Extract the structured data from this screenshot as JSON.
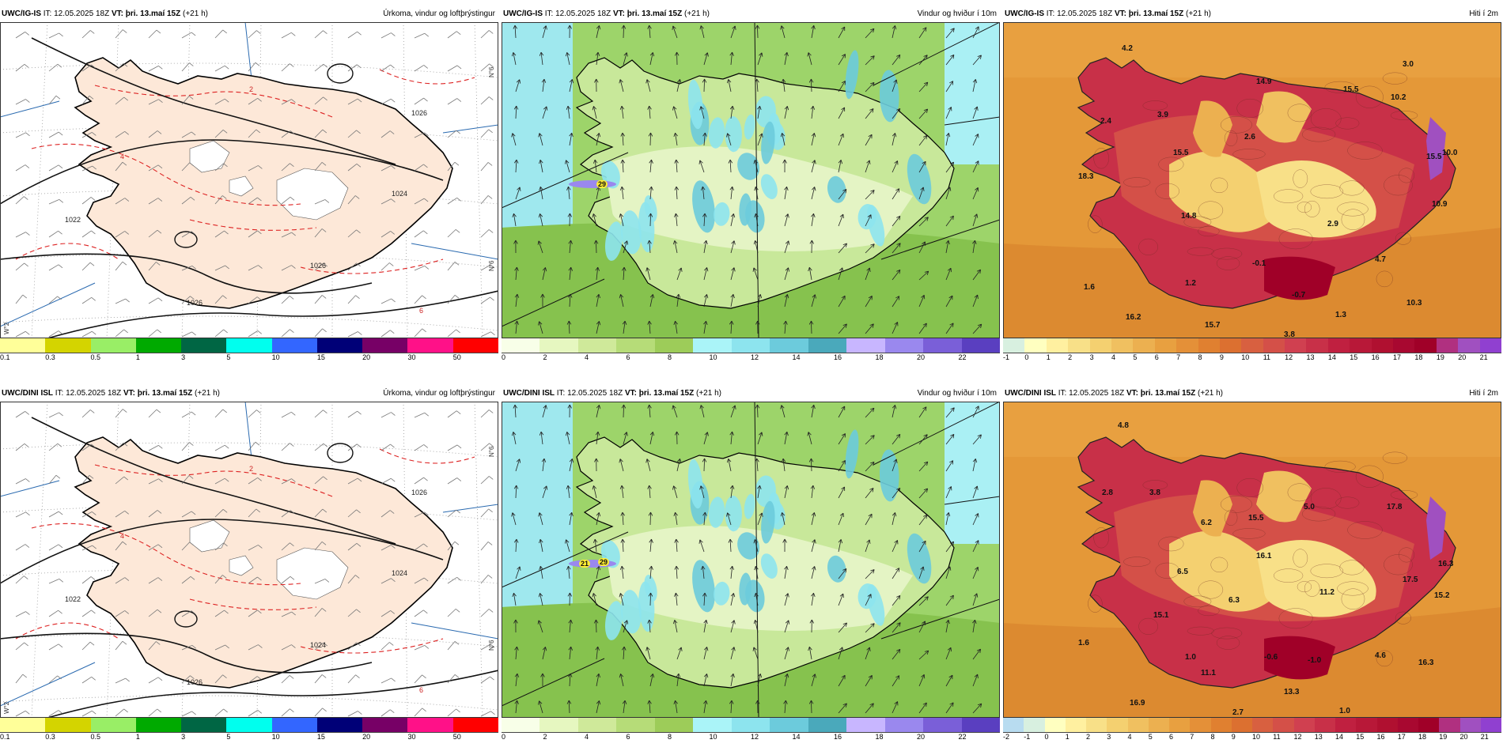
{
  "rows": [
    {
      "model": "UWC/IG-IS",
      "panels": [
        {
          "kind": "precip",
          "it_label": "IT:",
          "it": "12.05.2025 18Z",
          "vt_label": "VT:",
          "vt": "þri. 13.maí 15Z",
          "lead": "(+21 h)",
          "title": "Úrkoma, vindur og loftþrýstingur",
          "isobars": [
            "1024",
            "1022",
            "1026",
            "1026",
            "1026"
          ],
          "precip_labels": [
            "4",
            "2",
            "6"
          ],
          "grid_tags": [
            "N°6",
            "N°6",
            "W°2"
          ],
          "legend": [
            "0.1",
            "0.3",
            "0.5",
            "1",
            "3",
            "5",
            "10",
            "15",
            "20",
            "30",
            "50"
          ],
          "legend_colors": [
            "#ffff99",
            "#d4d400",
            "#99ee66",
            "#00aa00",
            "#006644",
            "#00ffee",
            "#3366ff",
            "#000077",
            "#770066",
            "#ff1188",
            "#ff0000"
          ]
        },
        {
          "kind": "wind",
          "it_label": "IT:",
          "it": "12.05.2025 18Z",
          "vt_label": "VT:",
          "vt": "þri. 13.maí 15Z",
          "lead": "(+21 h)",
          "title": "Vindur og hviður í 10m",
          "gust_labels": [
            "29"
          ],
          "legend": [
            "0",
            "2",
            "4",
            "6",
            "8",
            "10",
            "12",
            "14",
            "16",
            "18",
            "20",
            "22"
          ],
          "legend_colors": [
            "#f8ffe8",
            "#e6f7c0",
            "#cfe99a",
            "#b6dc78",
            "#9dcc59",
            "#aaf4f8",
            "#8de4ee",
            "#6ccbdc",
            "#4aa9bb",
            "#c8b6ff",
            "#9a88ee",
            "#7a5fd8",
            "#5a3fc0"
          ]
        },
        {
          "kind": "temp",
          "it_label": "IT:",
          "it": "12.05.2025 18Z",
          "vt_label": "VT:",
          "vt": "þri. 13.maí 15Z",
          "lead": "(+21 h)",
          "title": "Hiti í 2m",
          "temp_labels": [
            "4.2",
            "3.0",
            "14.9",
            "15.5",
            "10.2",
            "2.4",
            "3.9",
            "2.6",
            "15.5",
            "18.3",
            "15.5",
            "14.8",
            "10.0",
            "2.9",
            "1.6",
            "-0.1",
            "1.2",
            "-0.7",
            "4.7",
            "10.9",
            "10.3",
            "16.2",
            "15.7",
            "3.8",
            "1.3"
          ],
          "legend": [
            "-1",
            "0",
            "1",
            "2",
            "3",
            "4",
            "5",
            "6",
            "7",
            "8",
            "9",
            "10",
            "11",
            "12",
            "13",
            "14",
            "15",
            "16",
            "17",
            "18",
            "19",
            "20",
            "21"
          ],
          "legend_colors": [
            "#d8f0e0",
            "#ffffc0",
            "#fff0a0",
            "#f8e088",
            "#f4d070",
            "#f0c060",
            "#ecb050",
            "#e8a040",
            "#e49038",
            "#e08030",
            "#dc7030",
            "#d86040",
            "#d45048",
            "#d04050",
            "#c83048",
            "#c02040",
            "#b81838",
            "#b01030",
            "#a80830",
            "#a00028",
            "#b03080",
            "#a050c0",
            "#9040d0"
          ]
        }
      ]
    },
    {
      "model": "UWC/DINI ISL",
      "panels": [
        {
          "kind": "precip",
          "it_label": "IT:",
          "it": "12.05.2025 18Z",
          "vt_label": "VT:",
          "vt": "þri. 13.maí 15Z",
          "lead": "(+21 h)",
          "title": "Úrkoma, vindur og loftþrýstingur",
          "isobars": [
            "1024",
            "1022",
            "1024",
            "1026",
            "1026"
          ],
          "precip_labels": [
            "4",
            "2",
            "6"
          ],
          "grid_tags": [
            "N°6",
            "N°6",
            "W°2"
          ],
          "legend": [
            "0.1",
            "0.3",
            "0.5",
            "1",
            "3",
            "5",
            "10",
            "15",
            "20",
            "30",
            "50"
          ],
          "legend_colors": [
            "#ffff99",
            "#d4d400",
            "#99ee66",
            "#00aa00",
            "#006644",
            "#00ffee",
            "#3366ff",
            "#000077",
            "#770066",
            "#ff1188",
            "#ff0000"
          ]
        },
        {
          "kind": "wind",
          "it_label": "IT:",
          "it": "12.05.2025 18Z",
          "vt_label": "VT:",
          "vt": "þri. 13.maí 15Z",
          "lead": "(+21 h)",
          "title": "Vindur og hviður í 10m",
          "gust_labels": [
            "21",
            "29"
          ],
          "legend": [
            "0",
            "2",
            "4",
            "6",
            "8",
            "10",
            "12",
            "14",
            "16",
            "18",
            "20",
            "22"
          ],
          "legend_colors": [
            "#f8ffe8",
            "#e6f7c0",
            "#cfe99a",
            "#b6dc78",
            "#9dcc59",
            "#aaf4f8",
            "#8de4ee",
            "#6ccbdc",
            "#4aa9bb",
            "#c8b6ff",
            "#9a88ee",
            "#7a5fd8",
            "#5a3fc0"
          ]
        },
        {
          "kind": "temp",
          "it_label": "IT:",
          "it": "12.05.2025 18Z",
          "vt_label": "VT:",
          "vt": "þri. 13.maí 15Z",
          "lead": "(+21 h)",
          "title": "Hiti í 2m",
          "temp_labels": [
            "4.8",
            "2.8",
            "3.8",
            "6.2",
            "15.5",
            "5.0",
            "17.8",
            "16.1",
            "6.5",
            "17.5",
            "16.3",
            "15.2",
            "6.3",
            "11.2",
            "15.1",
            "1.6",
            "1.0",
            "-0.6",
            "-1.0",
            "4.6",
            "16.3",
            "16.9",
            "13.3",
            "1.0",
            "2.7",
            "11.1"
          ],
          "legend": [
            "-2",
            "-1",
            "0",
            "1",
            "2",
            "3",
            "4",
            "5",
            "6",
            "7",
            "8",
            "9",
            "10",
            "11",
            "12",
            "13",
            "14",
            "15",
            "16",
            "17",
            "18",
            "19",
            "20",
            "21"
          ],
          "legend_colors": [
            "#b8dcf0",
            "#d8f0e0",
            "#ffffc0",
            "#fff0a0",
            "#f8e088",
            "#f4d070",
            "#f0c060",
            "#ecb050",
            "#e8a040",
            "#e49038",
            "#e08030",
            "#dc7030",
            "#d86040",
            "#d45048",
            "#d04050",
            "#c83048",
            "#c02040",
            "#b81838",
            "#b01030",
            "#a80830",
            "#a00028",
            "#b03080",
            "#a050c0",
            "#9040d0"
          ]
        }
      ]
    }
  ]
}
